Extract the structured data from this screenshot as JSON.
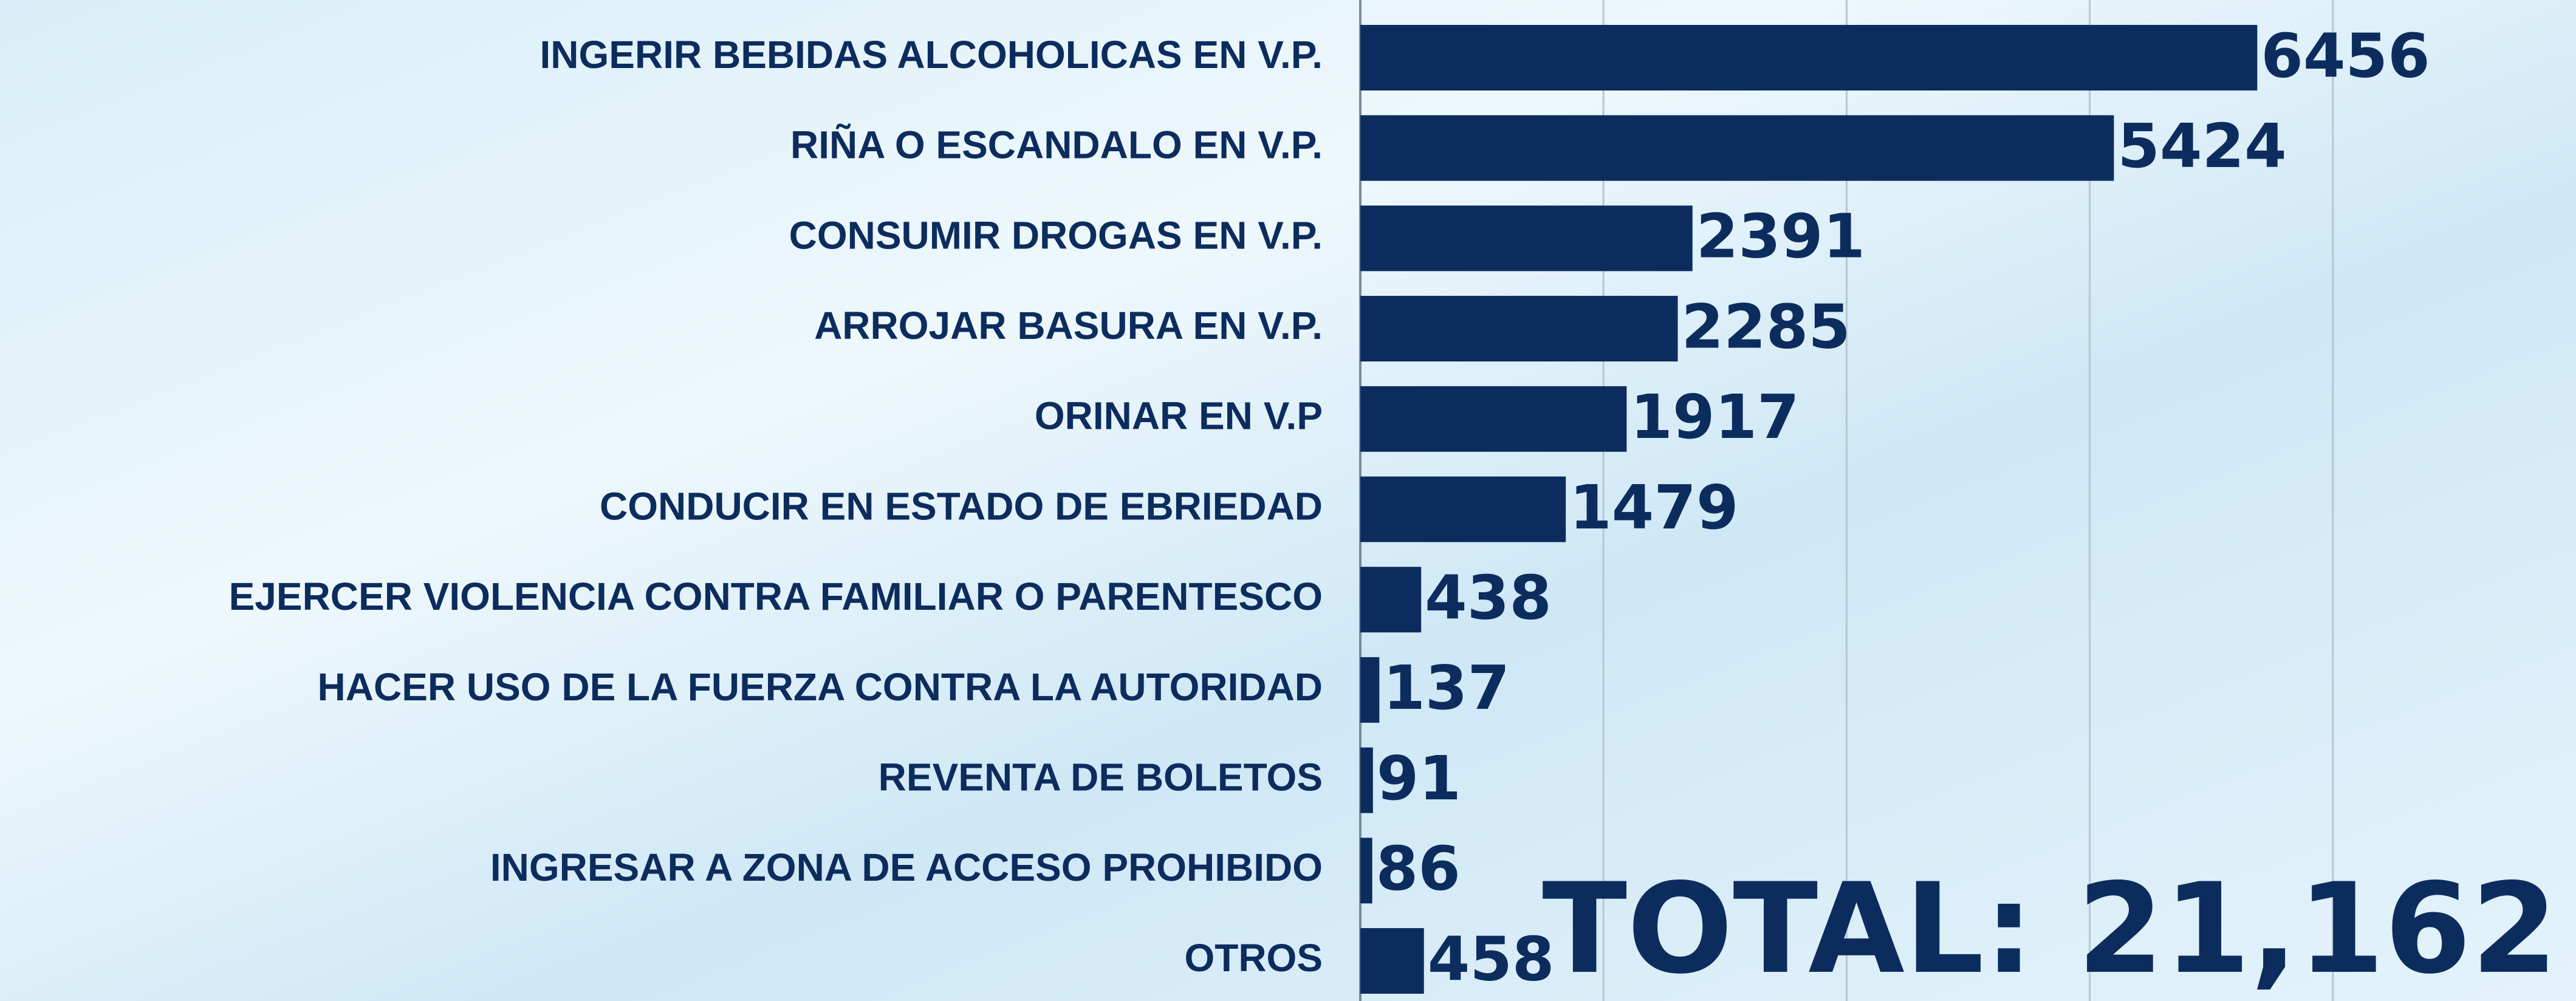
{
  "chart_data": {
    "type": "bar",
    "orientation": "horizontal",
    "categories": [
      "INGERIR BEBIDAS ALCOHOLICAS EN V.P.",
      "RIÑA O ESCANDALO EN V.P.",
      "CONSUMIR DROGAS EN V.P.",
      "ARROJAR BASURA EN V.P.",
      "ORINAR EN V.P",
      "CONDUCIR EN ESTADO DE EBRIEDAD",
      "EJERCER VIOLENCIA CONTRA FAMILIAR O PARENTESCO",
      "HACER USO DE LA FUERZA CONTRA LA AUTORIDAD",
      "REVENTA DE BOLETOS",
      "INGRESAR A ZONA DE ACCESO PROHIBIDO",
      "OTROS"
    ],
    "values": [
      6456,
      5424,
      2391,
      2285,
      1917,
      1479,
      438,
      137,
      91,
      86,
      458
    ],
    "color": "#0d2c5e",
    "xlim": [
      0,
      8750
    ],
    "xticks": [
      0,
      1750,
      3500,
      5250,
      7000
    ],
    "grid": true,
    "annotation": "TOTAL: 21,162"
  }
}
